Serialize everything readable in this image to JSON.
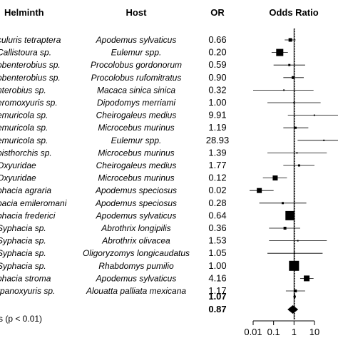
{
  "chart_data": {
    "type": "forest",
    "headers": {
      "helminth": "Helminth",
      "host": "Host",
      "or": "OR",
      "plot": "Odds Ratio"
    },
    "rows": [
      {
        "helminth": "culuris tetraptera",
        "host": "Apodemus sylvaticus",
        "or": "0.66",
        "value": 0.66,
        "lo": 0.35,
        "hi": 1.2,
        "weight": 5
      },
      {
        "helminth": "Callistoura sp.",
        "host": "Eulemur spp.",
        "or": "0.20",
        "value": 0.2,
        "lo": 0.08,
        "hi": 0.5,
        "weight": 10
      },
      {
        "helminth": "obenterobius sp.",
        "host": "Procolobus gordonorum",
        "or": "0.59",
        "value": 0.59,
        "lo": 0.1,
        "hi": 3.5,
        "weight": 3
      },
      {
        "helminth": "obenterobius sp.",
        "host": "Procolobus rufomitratus",
        "or": "0.90",
        "value": 0.9,
        "lo": 0.3,
        "hi": 3.0,
        "weight": 4
      },
      {
        "helminth": "nterobius sp.",
        "host": "Macaca sinica sinica",
        "or": "0.32",
        "value": 0.32,
        "lo": 0.01,
        "hi": 9,
        "weight": 2
      },
      {
        "helminth": "eromoxyuris sp.",
        "host": "Dipodomys merriami",
        "or": "1.00",
        "value": 1.0,
        "lo": 0.05,
        "hi": 20,
        "weight": 2
      },
      {
        "helminth": "emuricola sp.",
        "host": "Cheirogaleus medius",
        "or": "9.91",
        "value": 9.91,
        "lo": 0.5,
        "hi": 200,
        "weight": 2
      },
      {
        "helminth": "emuricola sp.",
        "host": "Microcebus murinus",
        "or": "1.19",
        "value": 1.19,
        "lo": 0.3,
        "hi": 5,
        "weight": 3
      },
      {
        "helminth": "emuricola sp.",
        "host": "Eulemur spp.",
        "or": "28.93",
        "value": 28.93,
        "lo": 1.5,
        "hi": 500,
        "weight": 2
      },
      {
        "helminth": "oisthorchis sp.",
        "host": "Microcebus murinus",
        "or": "1.39",
        "value": 1.39,
        "lo": 0.05,
        "hi": 40,
        "weight": 2
      },
      {
        "helminth": "Oxyuridae",
        "host": "Cheirogaleus medius",
        "or": "1.77",
        "value": 1.77,
        "lo": 0.3,
        "hi": 10,
        "weight": 3
      },
      {
        "helminth": "Oxyuridae",
        "host": "Microcebus murinus",
        "or": "0.12",
        "value": 0.12,
        "lo": 0.03,
        "hi": 0.45,
        "weight": 7
      },
      {
        "helminth": "phacia agraria",
        "host": "Apodemus speciosus",
        "or": "0.02",
        "value": 0.02,
        "lo": 0.004,
        "hi": 0.1,
        "weight": 7
      },
      {
        "helminth": "pacia emileromani",
        "host": "Apodemus speciosus",
        "or": "0.28",
        "value": 0.28,
        "lo": 0.02,
        "hi": 4,
        "weight": 3
      },
      {
        "helminth": "phacia frederici",
        "host": "Apodemus sylvaticus",
        "or": "0.64",
        "value": 0.64,
        "lo": 0.4,
        "hi": 1.05,
        "weight": 13
      },
      {
        "helminth": "Syphacia sp.",
        "host": "Abrothrix longipilis",
        "or": "0.36",
        "value": 0.36,
        "lo": 0.06,
        "hi": 2,
        "weight": 4
      },
      {
        "helminth": "Syphacia sp.",
        "host": "Abrothrix olivacea",
        "or": "1.53",
        "value": 1.53,
        "lo": 0.06,
        "hi": 40,
        "weight": 2
      },
      {
        "helminth": "Syphacia sp.",
        "host": "Oligoryzomys longicaudatus",
        "or": "1.05",
        "value": 1.05,
        "lo": 0.05,
        "hi": 25,
        "weight": 2
      },
      {
        "helminth": "Syphacia sp.",
        "host": "Rhabdomys pumilio",
        "or": "1.00",
        "value": 1.0,
        "lo": 0.65,
        "hi": 1.55,
        "weight": 14
      },
      {
        "helminth": "phacia stroma",
        "host": "Apodemus sylvaticus",
        "or": "4.16",
        "value": 4.16,
        "lo": 2,
        "hi": 9,
        "weight": 8
      },
      {
        "helminth": "rpanoxyuris sp.",
        "host": "Alouatta palliata mexicana",
        "or": "1.17",
        "value": 1.17,
        "lo": 0.4,
        "hi": 3.5,
        "weight": 4
      }
    ],
    "summary": [
      {
        "or": "1.07",
        "value": 1.07,
        "lo": 0.92,
        "hi": 1.25
      },
      {
        "or": "0.87",
        "value": 0.87,
        "lo": 0.48,
        "hi": 1.6
      }
    ],
    "note": "s (p < 0.01)",
    "x_scale": "log",
    "xlim": [
      0.01,
      10
    ],
    "xticks": [
      "0.01",
      "0.1",
      "1",
      "10"
    ],
    "xtick_values": [
      0.01,
      0.1,
      1,
      10
    ],
    "reference_line": 1
  }
}
